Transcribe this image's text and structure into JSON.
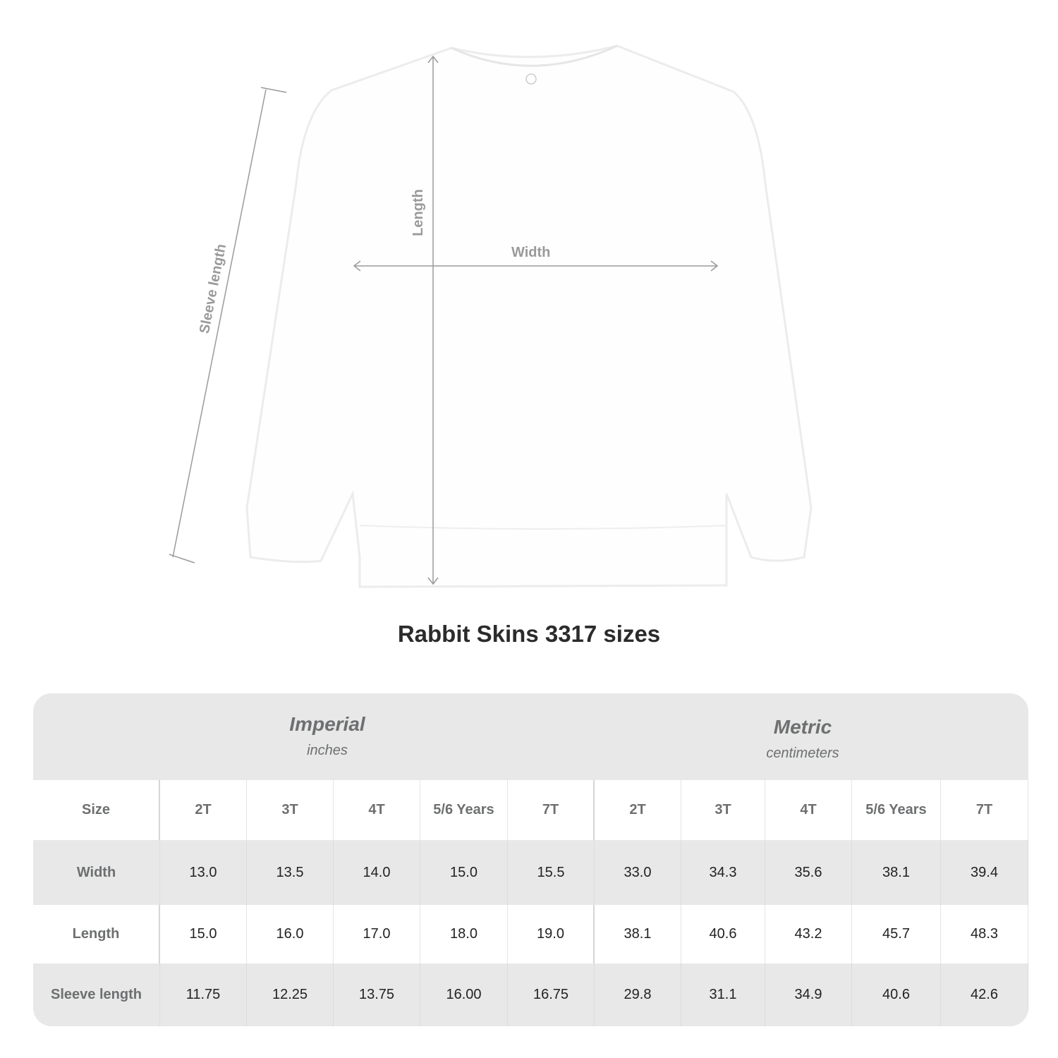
{
  "diagram": {
    "labels": {
      "length": "Length",
      "width": "Width",
      "sleeve": "Sleeve length"
    },
    "line_color": "#9a9a9a"
  },
  "title": "Rabbit Skins 3317 sizes",
  "table": {
    "imperial": {
      "name": "Imperial",
      "unit": "inches"
    },
    "metric": {
      "name": "Metric",
      "unit": "centimeters"
    },
    "size_label": "Size",
    "sizes": [
      "2T",
      "3T",
      "4T",
      "5/6 Years",
      "7T"
    ],
    "rows": [
      {
        "label": "Width",
        "imperial": [
          "13.0",
          "13.5",
          "14.0",
          "15.0",
          "15.5"
        ],
        "metric": [
          "33.0",
          "34.3",
          "35.6",
          "38.1",
          "39.4"
        ]
      },
      {
        "label": "Length",
        "imperial": [
          "15.0",
          "16.0",
          "17.0",
          "18.0",
          "19.0"
        ],
        "metric": [
          "38.1",
          "40.6",
          "43.2",
          "45.7",
          "48.3"
        ]
      },
      {
        "label": "Sleeve length",
        "imperial": [
          "11.75",
          "12.25",
          "13.75",
          "16.00",
          "16.75"
        ],
        "metric": [
          "29.8",
          "31.1",
          "34.9",
          "40.6",
          "42.6"
        ]
      }
    ],
    "header_bg": "#e8e8e8"
  }
}
